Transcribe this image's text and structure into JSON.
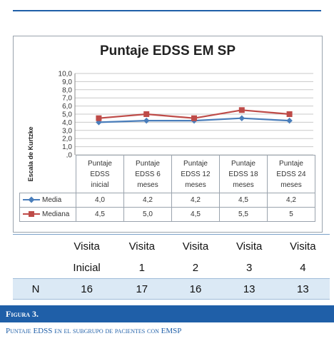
{
  "chart_data": {
    "type": "line",
    "title": "Puntaje EDSS EM SP",
    "ylabel": "Escala de Kurtzke",
    "ylim": [
      0,
      10
    ],
    "yticks": [
      "10,0",
      "9,0",
      "8,0",
      "7,0",
      "6,0",
      "5,0",
      "4,0",
      "3,0",
      "2,0",
      "1,0",
      ",0"
    ],
    "categories": [
      [
        "Puntaje",
        "EDSS",
        "inicial"
      ],
      [
        "Puntaje",
        "EDSS 6",
        "meses"
      ],
      [
        "Puntaje",
        "EDSS 12",
        "meses"
      ],
      [
        "Puntaje",
        "EDSS 18",
        "meses"
      ],
      [
        "Puntaje",
        "EDSS 24",
        "meses"
      ]
    ],
    "grid": true,
    "series": [
      {
        "name": "Media",
        "values": [
          4.0,
          4.2,
          4.2,
          4.5,
          4.2
        ],
        "labels": [
          "4,0",
          "4,2",
          "4,2",
          "4,5",
          "4,2"
        ],
        "color": "#4a7ebb",
        "marker": "diamond"
      },
      {
        "name": "Mediana",
        "values": [
          4.5,
          5.0,
          4.5,
          5.5,
          5.0
        ],
        "labels": [
          "4,5",
          "5,0",
          "4,5",
          "5,5",
          "5"
        ],
        "color": "#be4b48",
        "marker": "square"
      }
    ]
  },
  "visits": {
    "header_top": [
      "Visita",
      "Visita",
      "Visita",
      "Visita",
      "Visita"
    ],
    "header_bottom": [
      "Inicial",
      "1",
      "2",
      "3",
      "4"
    ],
    "n_label": "N",
    "n_values": [
      "16",
      "17",
      "16",
      "13",
      "13"
    ]
  },
  "figure": {
    "label": "Figura 3.",
    "caption": "Puntaje EDSS en el subgrupo de pacientes con EMSP"
  }
}
